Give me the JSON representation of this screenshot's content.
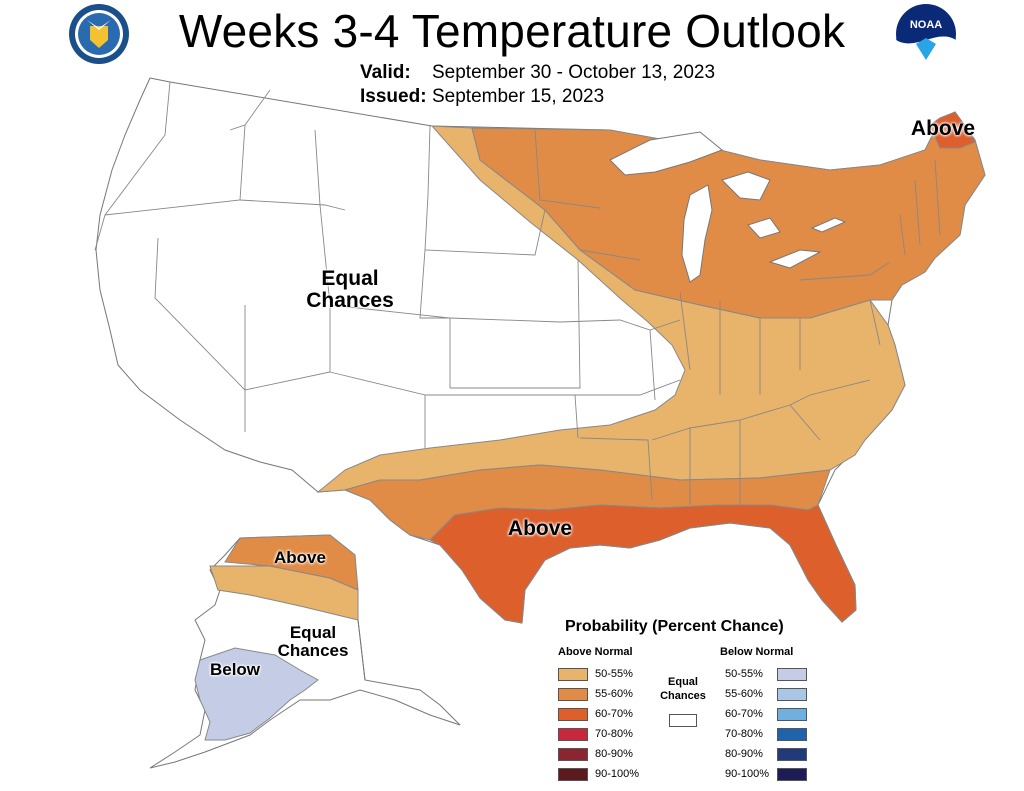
{
  "title": "Weeks 3-4 Temperature Outlook",
  "valid": {
    "label": "Valid:",
    "value": "September 30 - October 13, 2023"
  },
  "issued": {
    "label": "Issued:",
    "value": "September 15, 2023"
  },
  "logos": {
    "left": "doc-seal",
    "right": "noaa-logo",
    "noaa_text": "NOAA"
  },
  "colors": {
    "above_50_55": "#e8b36a",
    "above_55_60": "#e08c46",
    "above_60_70": "#dc5f2c",
    "above_70_80": "#c8283c",
    "above_80_90": "#8a2531",
    "above_90_100": "#5a1a1e",
    "below_50_55": "#c5cde6",
    "below_55_60": "#a9c6e4",
    "below_60_70": "#6fb0de",
    "below_70_80": "#1f63ab",
    "below_80_90": "#233a7a",
    "below_90_100": "#1c1d55",
    "equal": "#ffffff",
    "border": "#777777"
  },
  "labels": {
    "conus_equal": "Equal\nChances",
    "conus_above_northeast": "Above",
    "conus_above_south": "Above",
    "ak_above": "Above",
    "ak_equal": "Equal\nChances",
    "ak_below": "Below"
  },
  "legend": {
    "title": "Probability (Percent Chance)",
    "above_heading": "Above Normal",
    "below_heading": "Below Normal",
    "equal_label": "Equal\nChances",
    "above_items": [
      "50-55%",
      "55-60%",
      "60-70%",
      "70-80%",
      "80-90%",
      "90-100%"
    ],
    "below_items": [
      "50-55%",
      "55-60%",
      "60-70%",
      "70-80%",
      "80-90%",
      "90-100%"
    ]
  }
}
